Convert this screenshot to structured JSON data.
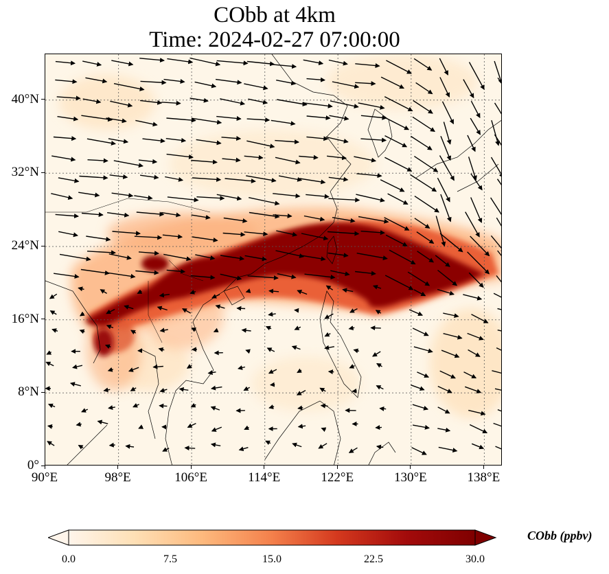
{
  "title": {
    "line1": "CObb at 4km",
    "line2": "Time: 2024-02-27 07:00:00"
  },
  "map": {
    "lon_range": [
      90,
      140
    ],
    "lat_range": [
      0,
      45
    ],
    "lon_ticks": [
      "90°E",
      "98°E",
      "106°E",
      "114°E",
      "122°E",
      "130°E",
      "138°E"
    ],
    "lat_ticks": [
      "0°",
      "8°N",
      "16°N",
      "24°N",
      "32°N",
      "40°N"
    ],
    "gridlines": true,
    "plume_color": "#8b0000",
    "background_color": "#fef6e8"
  },
  "colorbar": {
    "label": "CObb (ppbv)",
    "ticks": [
      "0.0",
      "7.5",
      "15.0",
      "22.5",
      "30.0"
    ],
    "min": 0,
    "max": 30,
    "extend": "both",
    "colors": [
      "#fff5eb",
      "#fee0b6",
      "#fdb97d",
      "#f4804b",
      "#d4391e",
      "#a30b0b",
      "#7f0000"
    ]
  }
}
